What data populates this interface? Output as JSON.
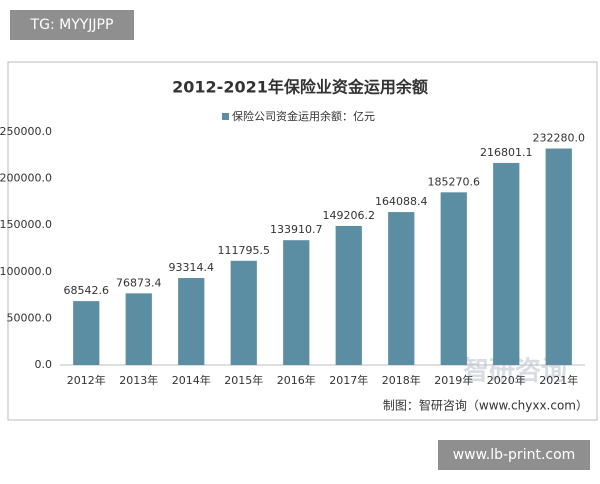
{
  "badge_top": "TG: MYYJJPP",
  "badge_bottom": "www.lb-print.com",
  "chart_data": {
    "type": "bar",
    "title": "2012-2021年保险业资金运用余额",
    "legend": "保险公司资金运用余额：亿元",
    "source": "制图：智研咨询（www.chyxx.com）",
    "watermark": "智研咨询",
    "categories": [
      "2012年",
      "2013年",
      "2014年",
      "2015年",
      "2016年",
      "2017年",
      "2018年",
      "2019年",
      "2020年",
      "2021年"
    ],
    "values": [
      68542.6,
      76873.4,
      93314.4,
      111795.5,
      133910.7,
      149206.2,
      164088.4,
      185270.6,
      216801.1,
      232280.0
    ],
    "value_labels": [
      "68542.6",
      "76873.4",
      "93314.4",
      "111795.5",
      "133910.7",
      "149206.2",
      "164088.4",
      "185270.6",
      "216801.1",
      "232280.0"
    ],
    "color": "#5b8ea3",
    "ylim": [
      0,
      250000
    ],
    "yticks": [
      {
        "value": 0,
        "label": "0.0"
      },
      {
        "value": 50000,
        "label": "50000.0"
      },
      {
        "value": 100000,
        "label": "100000.0"
      },
      {
        "value": 150000,
        "label": "150000.0"
      },
      {
        "value": 200000,
        "label": "200000.0"
      },
      {
        "value": 250000,
        "label": "250000.0"
      }
    ],
    "grid": false
  }
}
